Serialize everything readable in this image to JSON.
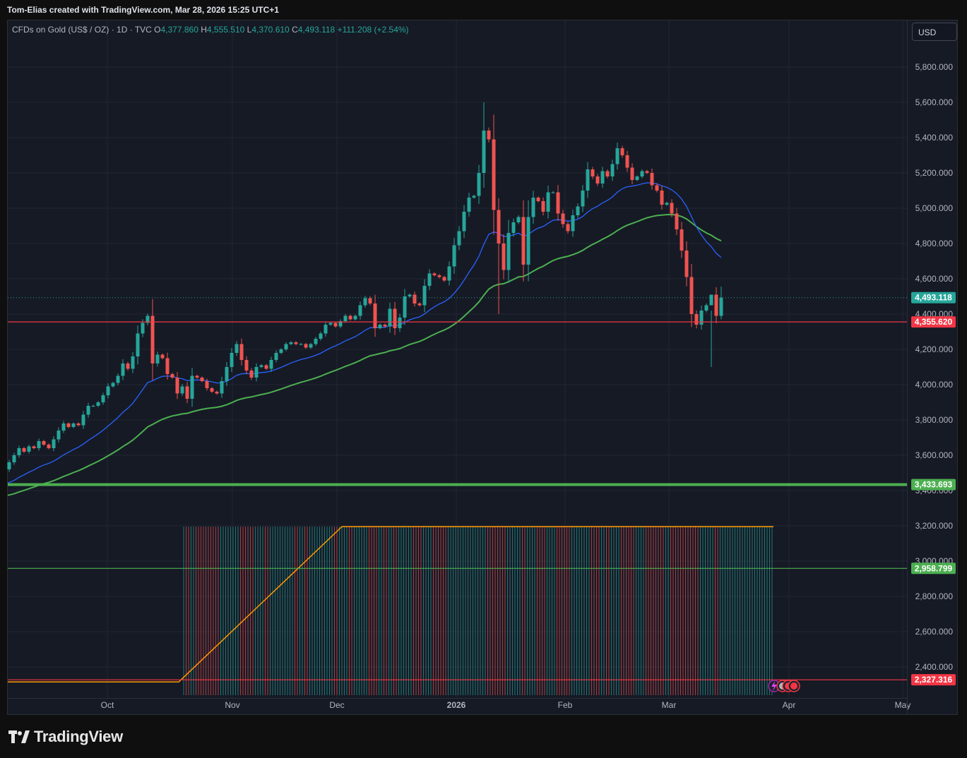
{
  "header": {
    "attribution": "Tom-Elias created with TradingView.com, Mar 28, 2026 15:25 UTC+1"
  },
  "legend": {
    "symbol": "CFDs on Gold (US$ / OZ) · 1D · TVC",
    "open_label": "O",
    "open": "4,377.860",
    "high_label": "H",
    "high": "4,555.510",
    "low_label": "L",
    "low": "4,370.610",
    "close_label": "C",
    "close": "4,493.118",
    "change": "+111.208 (+2.54%)"
  },
  "currency": "USD",
  "brand": {
    "name": "TradingView"
  },
  "colors": {
    "background": "#161a25",
    "up": "#26a69a",
    "down": "#ef5350",
    "ma_fast": "#2962ff",
    "ma_slow": "#4caf50",
    "orange": "#ff9800",
    "support_green": "#4caf50",
    "resistance_red": "#f23645"
  },
  "chart_data": {
    "type": "candlestick",
    "x_axis_labels": [
      "Oct",
      "Nov",
      "Dec",
      "2026",
      "Feb",
      "Mar",
      "Apr",
      "May"
    ],
    "y_axis_ticks": [
      "5,800.000",
      "5,600.000",
      "5,400.000",
      "5,200.000",
      "5,000.000",
      "4,800.000",
      "4,600.000",
      "4,400.000",
      "4,200.000",
      "4,000.000",
      "3,800.000",
      "3,600.000",
      "3,400.000",
      "3,200.000",
      "3,000.000",
      "2,800.000",
      "2,600.000",
      "2,400.000"
    ],
    "ylim": [
      2300,
      5980
    ],
    "price_tags": [
      {
        "label": "4,493.118",
        "value": 4493.118,
        "color": "#26a69a",
        "kind": "last"
      },
      {
        "label": "4,355.620",
        "value": 4355.62,
        "color": "#f23645",
        "kind": "line"
      },
      {
        "label": "3,433.693",
        "value": 3433.693,
        "color": "#4caf50",
        "kind": "thick"
      },
      {
        "label": "2,958.799",
        "value": 2958.799,
        "color": "#4caf50",
        "kind": "line"
      },
      {
        "label": "2,327.316",
        "value": 2327.316,
        "color": "#f23645",
        "kind": "line"
      }
    ],
    "closes": [
      3560,
      3600,
      3640,
      3620,
      3650,
      3640,
      3680,
      3660,
      3640,
      3690,
      3740,
      3780,
      3760,
      3780,
      3770,
      3830,
      3880,
      3880,
      3900,
      3940,
      3990,
      4010,
      4050,
      4120,
      4090,
      4160,
      4290,
      4350,
      4390,
      4120,
      4170,
      4150,
      4060,
      4040,
      3950,
      3990,
      3920,
      4050,
      4040,
      4020,
      3980,
      3960,
      3950,
      4020,
      4100,
      4180,
      4230,
      4140,
      4080,
      4040,
      4100,
      4110,
      4090,
      4140,
      4180,
      4200,
      4230,
      4240,
      4230,
      4230,
      4210,
      4230,
      4260,
      4290,
      4340,
      4350,
      4330,
      4360,
      4390,
      4370,
      4390,
      4450,
      4490,
      4460,
      4320,
      4340,
      4330,
      4430,
      4320,
      4380,
      4500,
      4510,
      4460,
      4450,
      4560,
      4630,
      4620,
      4610,
      4590,
      4670,
      4790,
      4870,
      4980,
      5060,
      5070,
      5200,
      5440,
      5390,
      4990,
      4800,
      4650,
      4860,
      4920,
      4950,
      4680,
      4950,
      5060,
      5040,
      4980,
      5090,
      5090,
      4970,
      4910,
      4870,
      4960,
      5010,
      5100,
      5220,
      5180,
      5140,
      5210,
      5180,
      5250,
      5340,
      5300,
      5230,
      5160,
      5180,
      5210,
      5200,
      5130,
      5100,
      5020,
      5030,
      4970,
      4880,
      4760,
      4610,
      4400,
      4340,
      4420,
      4450,
      4510,
      4390,
      4493
    ],
    "ma_fast_start": 3430,
    "ma_slow_start": 3365,
    "ma_fast_end": 4760,
    "ma_slow_end": 4955,
    "orange_line": {
      "low": 2315,
      "high": 3195
    },
    "hlines_label": ""
  }
}
